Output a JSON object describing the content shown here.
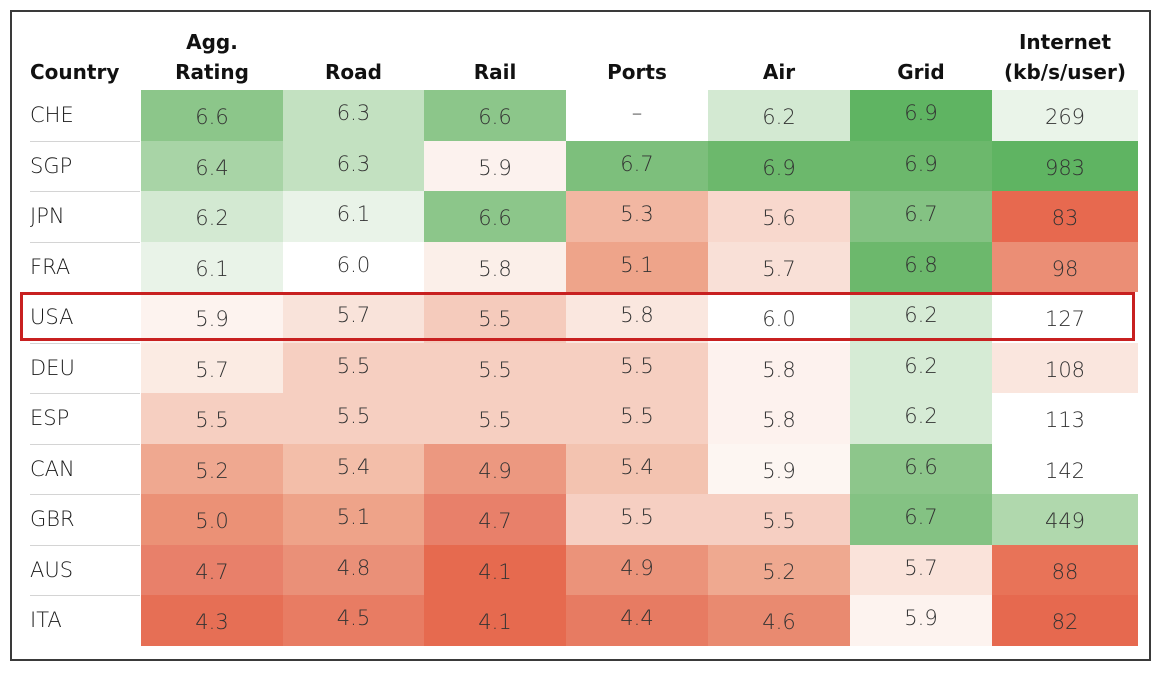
{
  "chart_data": {
    "type": "table",
    "columns": [
      {
        "key": "country",
        "label_lines": [
          "",
          "Country"
        ]
      },
      {
        "key": "agg",
        "label_lines": [
          "Agg.",
          "Rating"
        ]
      },
      {
        "key": "road",
        "label_lines": [
          "",
          "Road"
        ]
      },
      {
        "key": "rail",
        "label_lines": [
          "",
          "Rail"
        ]
      },
      {
        "key": "ports",
        "label_lines": [
          "",
          "Ports"
        ]
      },
      {
        "key": "air",
        "label_lines": [
          "",
          "Air"
        ]
      },
      {
        "key": "grid",
        "label_lines": [
          "",
          "Grid"
        ]
      },
      {
        "key": "internet",
        "label_lines": [
          "Internet",
          "(kb/s/user)"
        ]
      }
    ],
    "highlighted_row": "USA",
    "rows": [
      {
        "country": "CHE",
        "values": [
          "6.6",
          "6.3",
          "6.6",
          "–",
          "6.2",
          "6.9",
          "269"
        ],
        "colors": [
          "#8cc68a",
          "#c3e1c1",
          "#8cc68a",
          "#ffffff",
          "#d3e9d2",
          "#5fb462",
          "#eaf4e9"
        ]
      },
      {
        "country": "SGP",
        "values": [
          "6.4",
          "6.3",
          "5.9",
          "6.7",
          "6.9",
          "6.9",
          "983"
        ],
        "colors": [
          "#a8d4a6",
          "#c3e1c1",
          "#fcf2ee",
          "#7dbf7c",
          "#6cb86c",
          "#6cb86c",
          "#5fb462"
        ]
      },
      {
        "country": "JPN",
        "values": [
          "6.2",
          "6.1",
          "6.6",
          "5.3",
          "5.6",
          "6.7",
          "83"
        ],
        "colors": [
          "#d3e9d2",
          "#e9f3e8",
          "#8cc68a",
          "#f2b7a2",
          "#f8d8cd",
          "#84c283",
          "#e7694f"
        ]
      },
      {
        "country": "FRA",
        "values": [
          "6.1",
          "6.0",
          "5.8",
          "5.1",
          "5.7",
          "6.8",
          "98"
        ],
        "colors": [
          "#e9f3e8",
          "#ffffff",
          "#fbefe9",
          "#eea48a",
          "#f9e0d7",
          "#6cb86c",
          "#eb8e75"
        ]
      },
      {
        "country": "USA",
        "values": [
          "5.9",
          "5.7",
          "5.5",
          "5.8",
          "6.0",
          "6.2",
          "127"
        ],
        "colors": [
          "#fdf3ef",
          "#f9e3da",
          "#f5cbbc",
          "#fae7df",
          "#ffffff",
          "#d6ebd5",
          "#ffffff"
        ]
      },
      {
        "country": "DEU",
        "values": [
          "5.7",
          "5.5",
          "5.5",
          "5.5",
          "5.8",
          "6.2",
          "108"
        ],
        "colors": [
          "#fbebe3",
          "#f6cfc1",
          "#f6cfc1",
          "#f6cfc1",
          "#fdf2ee",
          "#d6ebd5",
          "#fae6de"
        ]
      },
      {
        "country": "ESP",
        "values": [
          "5.5",
          "5.5",
          "5.5",
          "5.5",
          "5.8",
          "6.2",
          "113"
        ],
        "colors": [
          "#f6cfc1",
          "#f6cfc1",
          "#f6cfc1",
          "#f6cfc1",
          "#fdf2ee",
          "#d6ebd5",
          "#ffffff"
        ]
      },
      {
        "country": "CAN",
        "values": [
          "5.2",
          "5.4",
          "4.9",
          "5.4",
          "5.9",
          "6.6",
          "142"
        ],
        "colors": [
          "#efa890",
          "#f3bea9",
          "#ec9880",
          "#f3c3b0",
          "#fdf6f2",
          "#8dc68b",
          "#ffffff"
        ]
      },
      {
        "country": "GBR",
        "values": [
          "5.0",
          "5.1",
          "4.7",
          "5.5",
          "5.5",
          "6.7",
          "449"
        ],
        "colors": [
          "#eb9176",
          "#eea389",
          "#e8806a",
          "#f6cfc2",
          "#f6cfc2",
          "#84c283",
          "#b0d8ad"
        ]
      },
      {
        "country": "AUS",
        "values": [
          "4.7",
          "4.8",
          "4.1",
          "4.9",
          "5.2",
          "5.7",
          "88"
        ],
        "colors": [
          "#e8806a",
          "#ea9078",
          "#e66a4f",
          "#eb937a",
          "#efa990",
          "#fae3da",
          "#e87358"
        ]
      },
      {
        "country": "ITA",
        "values": [
          "4.3",
          "4.5",
          "4.1",
          "4.4",
          "4.6",
          "5.9",
          "82"
        ],
        "colors": [
          "#e66f55",
          "#e87c63",
          "#e66a4f",
          "#e77b62",
          "#e98a70",
          "#fdf3ef",
          "#e6694f"
        ]
      }
    ]
  }
}
